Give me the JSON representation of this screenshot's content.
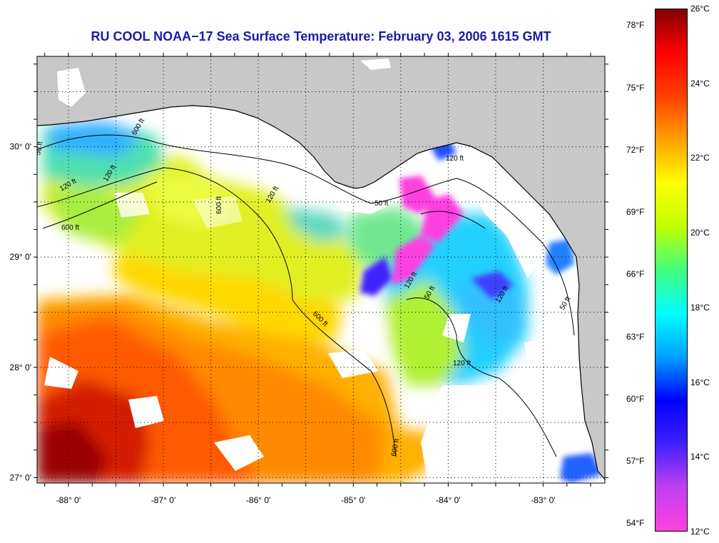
{
  "title": "RU COOL  NOAA−17  Sea Surface Temperature:  February 03, 2006 1615 GMT",
  "map": {
    "lon_range": [
      -88.33,
      -82.35
    ],
    "lat_range": [
      26.95,
      30.82
    ],
    "lon_ticks": [
      {
        "value": -88,
        "label": "-88° 0'"
      },
      {
        "value": -87,
        "label": "-87° 0'"
      },
      {
        "value": -86,
        "label": "-86° 0'"
      },
      {
        "value": -85,
        "label": "-85° 0'"
      },
      {
        "value": -84,
        "label": "-84° 0'"
      },
      {
        "value": -83,
        "label": "-83° 0'"
      }
    ],
    "lat_ticks": [
      {
        "value": 30,
        "label": "30° 0'"
      },
      {
        "value": 29,
        "label": "29° 0'"
      },
      {
        "value": 28,
        "label": "28° 0'"
      },
      {
        "value": 27,
        "label": "27° 0'"
      }
    ],
    "contour_labels": [
      "50 ft",
      "120 ft",
      "600 ft",
      "120 ft",
      "600 ft",
      "600 ft",
      "50 ft",
      "120 ft",
      "600 ft",
      "120 ft",
      "50 ft",
      "120 ft",
      "120 ft",
      "50 ft",
      "120 ft",
      "600 ft"
    ],
    "colors": {
      "land": "#c8c8c8",
      "cloud": "#ffffff",
      "contour": "#000000",
      "grid": "#000000"
    }
  },
  "colorbar": {
    "celsius": [
      "26°C",
      "24°C",
      "22°C",
      "20°C",
      "18°C",
      "16°C",
      "14°C",
      "12°C"
    ],
    "fahrenheit": [
      "78°F",
      "75°F",
      "72°F",
      "69°F",
      "66°F",
      "63°F",
      "60°F",
      "57°F",
      "54°F"
    ],
    "range_c": [
      12,
      26
    ],
    "gradient": [
      "#ff40e0",
      "#c040f0",
      "#4020ff",
      "#0000ff",
      "#00a0ff",
      "#00ffff",
      "#40ff80",
      "#c0ff00",
      "#ffff00",
      "#ffa000",
      "#ff4000",
      "#ff0000",
      "#800000"
    ]
  }
}
